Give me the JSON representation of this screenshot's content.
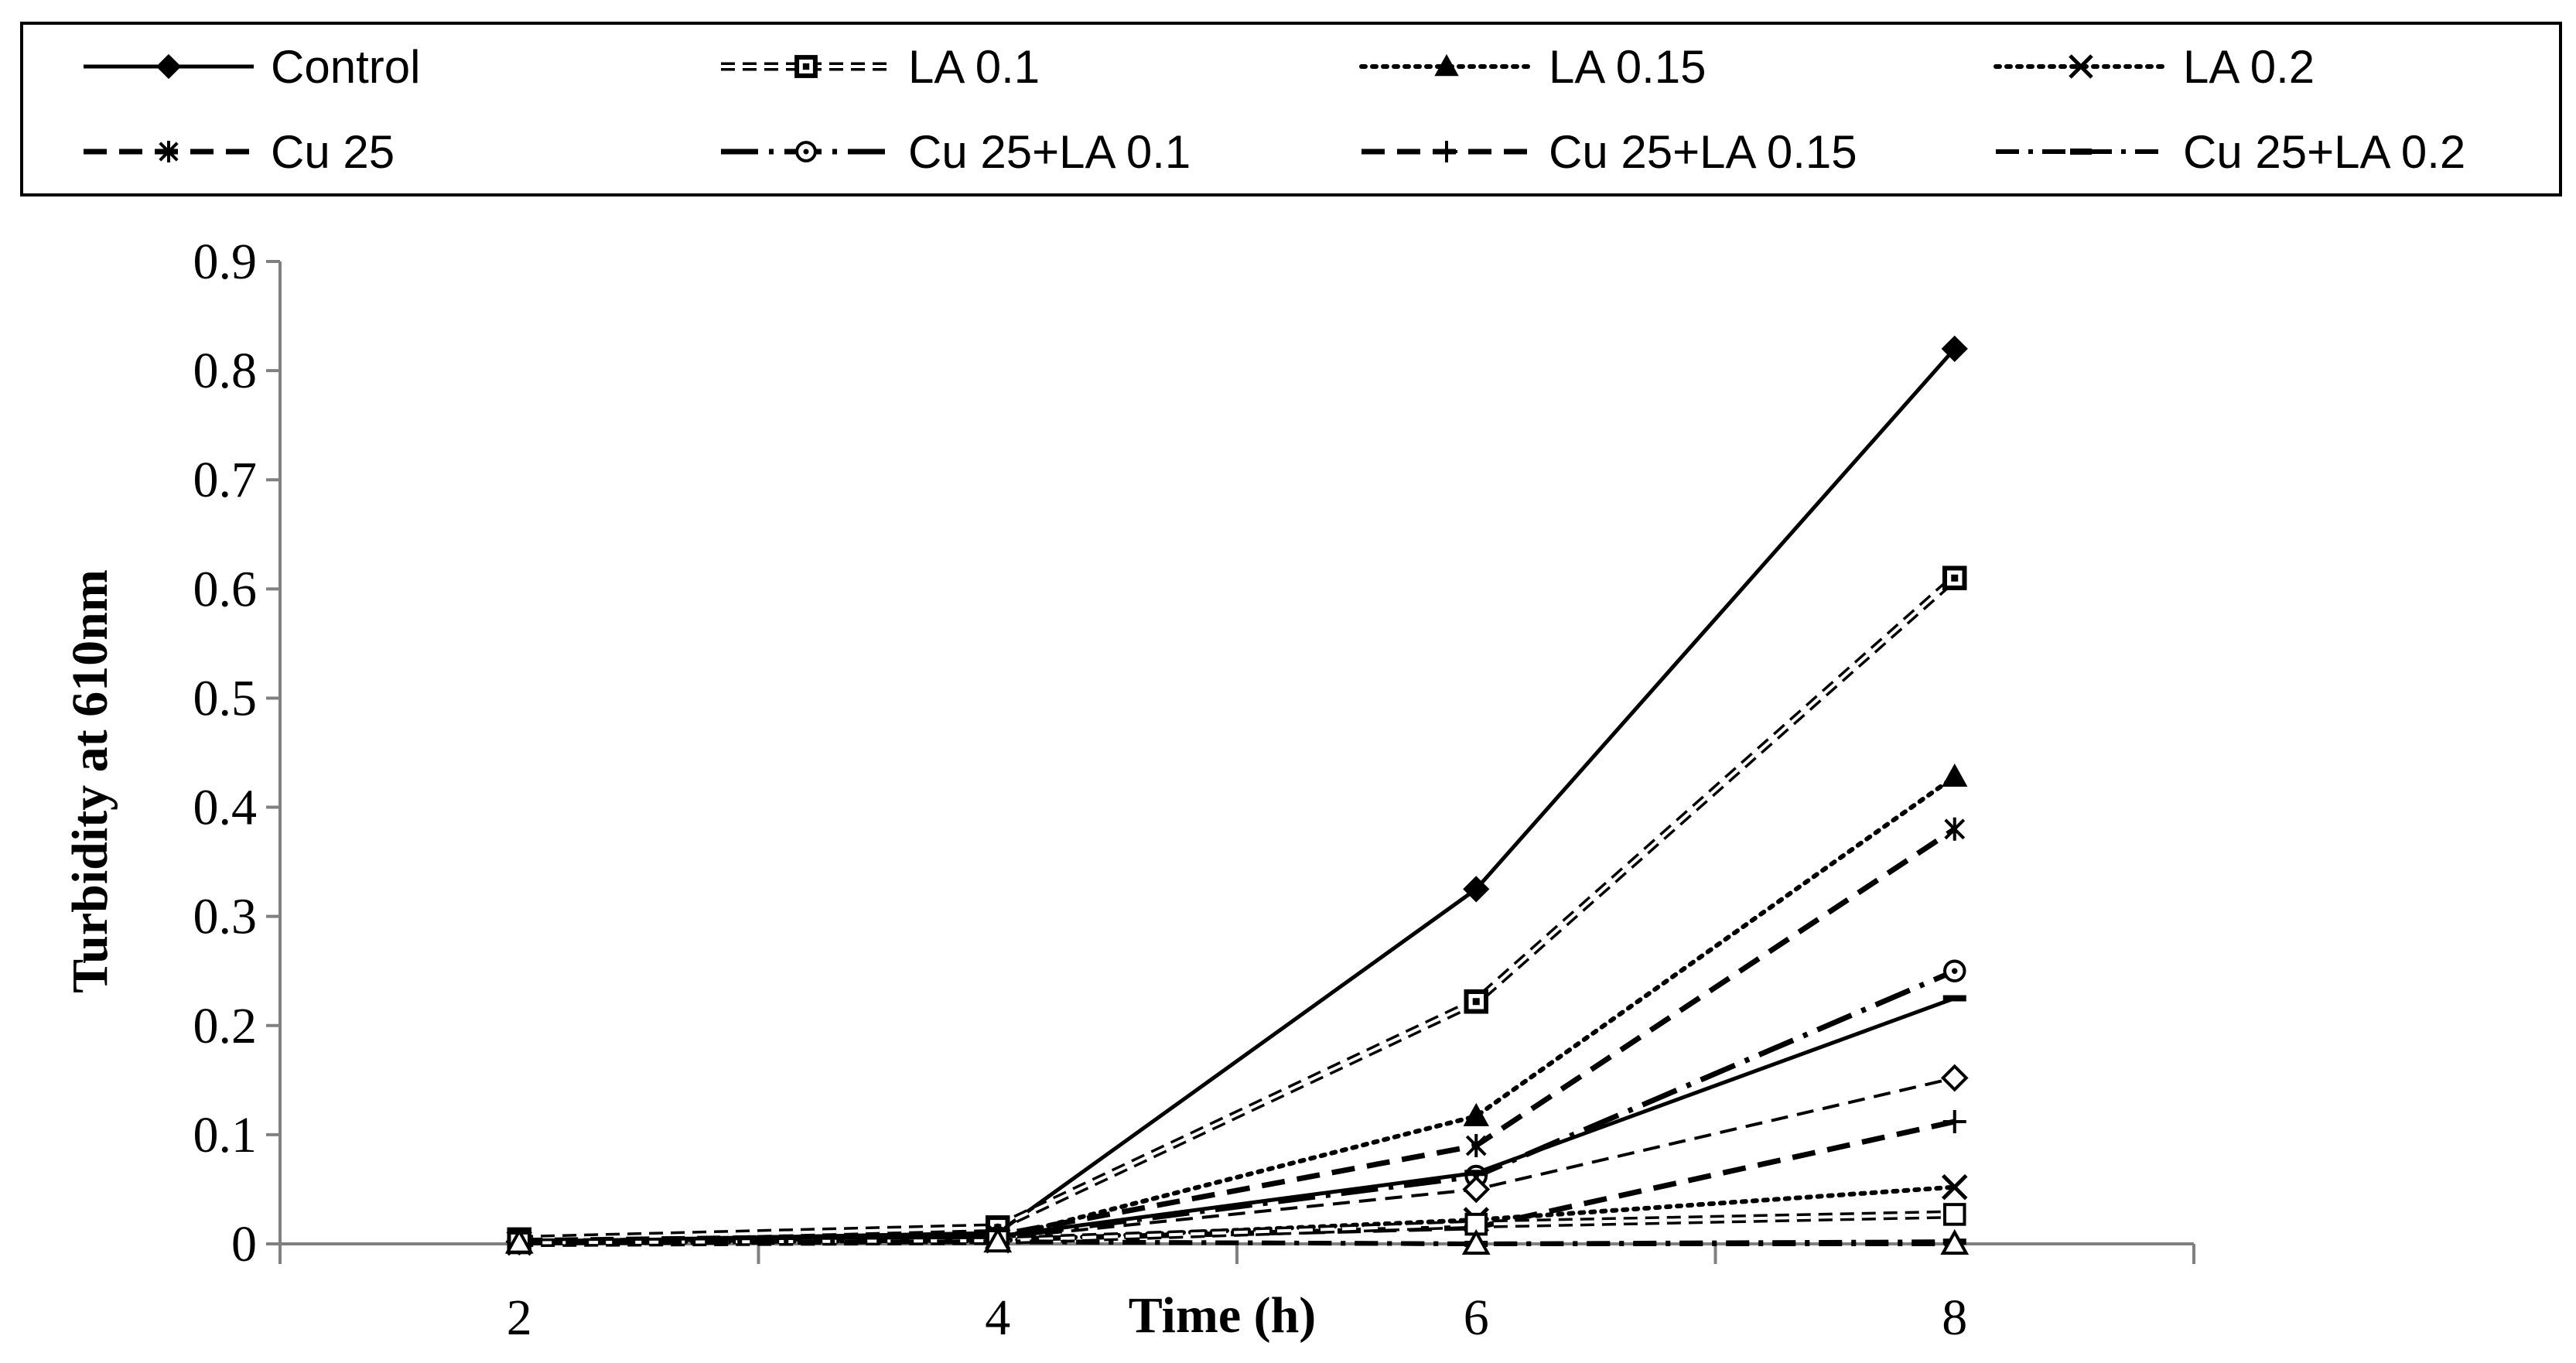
{
  "chart_data": {
    "type": "line",
    "title": "",
    "xlabel": "Time (h)",
    "ylabel": "Turbidity at 610nm",
    "x": [
      2,
      4,
      6,
      8
    ],
    "xlim": [
      1,
      9
    ],
    "ylim": [
      0,
      0.9
    ],
    "yticks": [
      0,
      0.1,
      0.2,
      0.3,
      0.4,
      0.5,
      0.6,
      0.7,
      0.8,
      0.9
    ],
    "ytick_labels": [
      "0",
      "0.1",
      "0.2",
      "0.3",
      "0.4",
      "0.5",
      "0.6",
      "0.7",
      "0.8",
      "0.9"
    ],
    "xtick_labels": [
      "2",
      "4",
      "6",
      "8"
    ],
    "grid": false,
    "legend_position": "top",
    "legend": [
      {
        "name": "Control",
        "series": 0
      },
      {
        "name": "LA 0.1",
        "series": 1
      },
      {
        "name": "LA 0.15",
        "series": 2
      },
      {
        "name": "LA 0.2",
        "series": 3
      },
      {
        "name": "Cu 25",
        "series": 4
      },
      {
        "name": "Cu 25+LA 0.1",
        "series": 5
      },
      {
        "name": "Cu 25+LA 0.15",
        "series": 6
      },
      {
        "name": "Cu 25+LA 0.2",
        "series": 7
      }
    ],
    "series": [
      {
        "name": "Control",
        "values": [
          0.002,
          0.01,
          0.325,
          0.82
        ],
        "line": "solid",
        "marker": "diamond-filled",
        "color": "#000000"
      },
      {
        "name": "LA 0.1",
        "values": [
          0.004,
          0.015,
          0.222,
          0.61
        ],
        "line": "double-dash",
        "marker": "square-dot",
        "color": "#000000"
      },
      {
        "name": "LA 0.15",
        "values": [
          0.002,
          0.005,
          0.117,
          0.428
        ],
        "line": "dotted",
        "marker": "triangle-filled",
        "color": "#000000"
      },
      {
        "name": "LA 0.2",
        "values": [
          0.001,
          0.003,
          0.022,
          0.052
        ],
        "line": "dotted",
        "marker": "x",
        "color": "#000000"
      },
      {
        "name": "Cu 25",
        "values": [
          0.003,
          0.008,
          0.09,
          0.38
        ],
        "line": "dashed",
        "marker": "asterisk",
        "color": "#000000"
      },
      {
        "name": "Cu 25+LA 0.1",
        "values": [
          0.002,
          0.006,
          0.062,
          0.25
        ],
        "line": "long-dash-dot",
        "marker": "circle-open",
        "color": "#000000"
      },
      {
        "name": "Cu 25+LA 0.15",
        "values": [
          0.001,
          0.004,
          0.015,
          0.112
        ],
        "line": "dashed",
        "marker": "plus",
        "color": "#000000"
      },
      {
        "name": "Cu 25+LA 0.2",
        "values": [
          0.001,
          0.002,
          0.0,
          0.002
        ],
        "line": "dash-dot",
        "marker": "dash",
        "color": "#000000"
      },
      {
        "values": [
          0.002,
          0.007,
          0.065,
          0.225
        ],
        "line": "solid",
        "marker": "dash",
        "color": "#000000"
      },
      {
        "values": [
          0.002,
          0.005,
          0.05,
          0.152
        ],
        "line": "thin-dashed",
        "marker": "diamond-open",
        "color": "#000000"
      },
      {
        "values": [
          0.001,
          0.003,
          0.018,
          0.027
        ],
        "line": "double-dash",
        "marker": "square-open",
        "color": "#000000"
      },
      {
        "values": [
          0.001,
          0.002,
          0.0,
          0.0
        ],
        "line": "dash-dot",
        "marker": "triangle-open",
        "color": "#000000"
      }
    ]
  }
}
